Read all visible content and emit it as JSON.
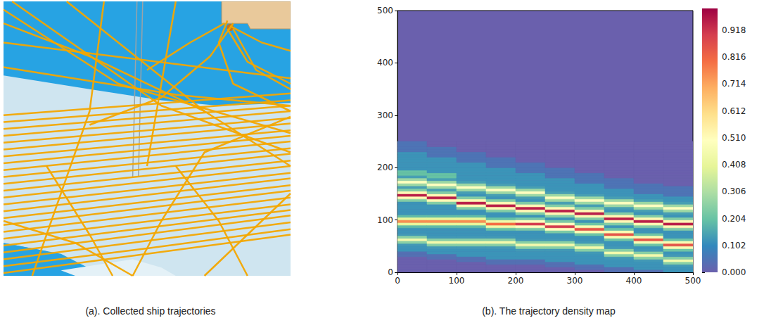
{
  "chart_data": [
    {
      "type": "lines",
      "title": "(a). Collected ship trajectories",
      "xlim": [
        0,
        100
      ],
      "ylim": [
        0,
        100
      ],
      "tick_labels": false,
      "color": "#f3a600",
      "trajectories": [
        [
          [
            0,
            1
          ],
          [
            100,
            15
          ]
        ],
        [
          [
            0,
            3.5
          ],
          [
            50,
            10
          ],
          [
            100,
            17
          ]
        ],
        [
          [
            0,
            6
          ],
          [
            100,
            19.5
          ]
        ],
        [
          [
            0,
            8.5
          ],
          [
            100,
            22
          ]
        ],
        [
          [
            0,
            11
          ],
          [
            50,
            17.5
          ],
          [
            100,
            24
          ]
        ],
        [
          [
            0,
            13.5
          ],
          [
            100,
            26
          ]
        ],
        [
          [
            0,
            16
          ],
          [
            100,
            28.5
          ]
        ],
        [
          [
            0,
            18.5
          ],
          [
            100,
            31
          ]
        ],
        [
          [
            0,
            21
          ],
          [
            100,
            33
          ]
        ],
        [
          [
            0,
            23.5
          ],
          [
            100,
            35.5
          ]
        ],
        [
          [
            0,
            26
          ],
          [
            100,
            37.5
          ]
        ],
        [
          [
            0,
            28.5
          ],
          [
            100,
            40
          ]
        ],
        [
          [
            0,
            31
          ],
          [
            100,
            42
          ]
        ],
        [
          [
            0,
            33.5
          ],
          [
            100,
            44.5
          ]
        ],
        [
          [
            0,
            36
          ],
          [
            100,
            46.5
          ]
        ],
        [
          [
            0,
            38.5
          ],
          [
            100,
            49
          ]
        ],
        [
          [
            0,
            41
          ],
          [
            100,
            51
          ]
        ],
        [
          [
            0,
            43.5
          ],
          [
            100,
            53
          ]
        ],
        [
          [
            0,
            46
          ],
          [
            100,
            55.5
          ]
        ],
        [
          [
            0,
            48.5
          ],
          [
            100,
            57.5
          ]
        ],
        [
          [
            0,
            51
          ],
          [
            100,
            60
          ]
        ],
        [
          [
            0,
            53.5
          ],
          [
            100,
            62
          ]
        ],
        [
          [
            0,
            56
          ],
          [
            100,
            64
          ]
        ],
        [
          [
            0,
            58.5
          ],
          [
            100,
            66.5
          ]
        ],
        [
          [
            0,
            97
          ],
          [
            40,
            70
          ],
          [
            100,
            52
          ]
        ],
        [
          [
            3,
            100
          ],
          [
            55,
            62
          ],
          [
            100,
            45
          ]
        ],
        [
          [
            0,
            85
          ],
          [
            100,
            72
          ]
        ],
        [
          [
            0,
            76
          ],
          [
            60,
            66
          ],
          [
            100,
            62
          ]
        ],
        [
          [
            22,
            100
          ],
          [
            70,
            60
          ],
          [
            100,
            40
          ]
        ],
        [
          [
            35,
            100
          ],
          [
            30,
            60
          ],
          [
            20,
            30
          ],
          [
            10,
            0
          ]
        ],
        [
          [
            60,
            100
          ],
          [
            55,
            70
          ],
          [
            50,
            40
          ]
        ],
        [
          [
            0,
            92
          ],
          [
            30,
            80
          ],
          [
            70,
            60
          ]
        ],
        [
          [
            78,
            90
          ],
          [
            85,
            78
          ],
          [
            100,
            70
          ]
        ],
        [
          [
            80,
            92
          ],
          [
            72,
            80
          ],
          [
            55,
            65
          ],
          [
            30,
            55
          ]
        ],
        [
          [
            79,
            91
          ],
          [
            90,
            85
          ],
          [
            100,
            82
          ]
        ],
        [
          [
            78,
            93
          ],
          [
            75,
            85
          ],
          [
            80,
            70
          ],
          [
            100,
            60
          ]
        ],
        [
          [
            80,
            90
          ],
          [
            88,
            75
          ],
          [
            100,
            68
          ]
        ],
        [
          [
            77,
            92
          ],
          [
            65,
            85
          ],
          [
            50,
            75
          ]
        ],
        [
          [
            0,
            20
          ],
          [
            25,
            12
          ],
          [
            45,
            0
          ]
        ],
        [
          [
            15,
            40
          ],
          [
            30,
            15
          ],
          [
            38,
            0
          ]
        ],
        [
          [
            60,
            40
          ],
          [
            75,
            20
          ],
          [
            85,
            0
          ]
        ],
        [
          [
            100,
            30
          ],
          [
            80,
            10
          ],
          [
            70,
            0
          ]
        ],
        [
          [
            45,
            0
          ],
          [
            55,
            20
          ],
          [
            70,
            45
          ],
          [
            100,
            58
          ]
        ]
      ]
    },
    {
      "type": "heatmap",
      "title": "(b). The trajectory density map",
      "xlim": [
        0,
        500
      ],
      "ylim": [
        0,
        500
      ],
      "xticks": [
        0,
        100,
        200,
        300,
        400,
        500
      ],
      "yticks": [
        0,
        100,
        200,
        300,
        400,
        500
      ],
      "x_edges": [
        0,
        50,
        100,
        150,
        200,
        250,
        300,
        350,
        400,
        450,
        500
      ],
      "y_edges": [
        0,
        5,
        10,
        15,
        20,
        25,
        30,
        35,
        40,
        45,
        50,
        55,
        60,
        65,
        70,
        75,
        80,
        85,
        90,
        95,
        100,
        105,
        110,
        115,
        120,
        125,
        130,
        135,
        140,
        145,
        150,
        155,
        160,
        165,
        170,
        175,
        180,
        185,
        190,
        195,
        200,
        205,
        210,
        215,
        220,
        225,
        230,
        235,
        240,
        245,
        250
      ],
      "z": [
        [
          0,
          0,
          0,
          0,
          0,
          0,
          0.04,
          0.04,
          0.12,
          0.12,
          0.13,
          0.25,
          0.45,
          0.25,
          0.13,
          0.12,
          0.12,
          0.19,
          0.41,
          0.75,
          0.41,
          0.19,
          0.12,
          0.12,
          0.12,
          0.12,
          0.12,
          0.24,
          0.52,
          0.95,
          0.52,
          0.24,
          0.14,
          0.28,
          0.5,
          0.28,
          0.14,
          0.2,
          0.2,
          0.12,
          0.12,
          0.12,
          0.12,
          0.12,
          0.12,
          0.12,
          0.05,
          0.05,
          0.05,
          0.05
        ],
        [
          0,
          0,
          0,
          0,
          0,
          0.04,
          0.04,
          0.12,
          0.12,
          0.13,
          0.25,
          0.45,
          0.25,
          0.13,
          0.12,
          0.12,
          0.12,
          0.19,
          0.41,
          0.75,
          0.41,
          0.19,
          0.12,
          0.12,
          0.12,
          0.12,
          0.24,
          0.52,
          0.95,
          0.52,
          0.24,
          0.14,
          0.28,
          0.5,
          0.28,
          0.14,
          0.2,
          0.2,
          0.12,
          0.12,
          0.12,
          0.12,
          0.12,
          0.12,
          0.05,
          0.05,
          0.05,
          0.05,
          0,
          0
        ],
        [
          0,
          0,
          0,
          0,
          0.04,
          0.04,
          0.12,
          0.12,
          0.12,
          0.13,
          0.25,
          0.45,
          0.25,
          0.13,
          0.12,
          0.12,
          0.12,
          0.19,
          0.41,
          0.75,
          0.41,
          0.19,
          0.12,
          0.12,
          0.24,
          0.52,
          0.95,
          0.52,
          0.24,
          0.12,
          0.14,
          0.28,
          0.5,
          0.28,
          0.14,
          0.12,
          0.12,
          0.12,
          0.12,
          0.12,
          0.12,
          0.12,
          0.05,
          0.05,
          0.05,
          0.05,
          0,
          0,
          0,
          0
        ],
        [
          0,
          0,
          0,
          0.04,
          0.04,
          0.12,
          0.12,
          0.12,
          0.12,
          0.13,
          0.25,
          0.45,
          0.25,
          0.13,
          0.12,
          0.12,
          0.2,
          0.44,
          0.8,
          0.44,
          0.2,
          0.12,
          0.12,
          0.24,
          0.52,
          0.95,
          0.52,
          0.24,
          0.12,
          0.14,
          0.28,
          0.5,
          0.28,
          0.14,
          0.12,
          0.12,
          0.12,
          0.12,
          0.12,
          0.12,
          0.05,
          0.05,
          0.05,
          0.05,
          0,
          0,
          0,
          0,
          0,
          0
        ],
        [
          0,
          0,
          0,
          0.04,
          0.04,
          0.12,
          0.12,
          0.12,
          0.13,
          0.25,
          0.45,
          0.25,
          0.13,
          0.12,
          0.12,
          0.12,
          0.23,
          0.5,
          0.9,
          0.5,
          0.23,
          0.12,
          0.24,
          0.52,
          0.95,
          0.52,
          0.24,
          0.12,
          0.14,
          0.28,
          0.5,
          0.28,
          0.14,
          0.12,
          0.12,
          0.12,
          0.12,
          0.12,
          0.05,
          0.05,
          0.05,
          0.05,
          0,
          0,
          0,
          0,
          0,
          0,
          0,
          0
        ],
        [
          0,
          0,
          0.04,
          0.04,
          0.12,
          0.12,
          0.12,
          0.12,
          0.13,
          0.25,
          0.45,
          0.25,
          0.13,
          0.12,
          0.12,
          0.23,
          0.5,
          0.9,
          0.5,
          0.23,
          0.12,
          0.24,
          0.52,
          0.95,
          0.52,
          0.24,
          0.14,
          0.28,
          0.5,
          0.28,
          0.14,
          0.12,
          0.12,
          0.12,
          0.12,
          0.12,
          0.05,
          0.05,
          0.05,
          0.05,
          0,
          0,
          0,
          0,
          0,
          0,
          0,
          0,
          0,
          0
        ],
        [
          0,
          0.04,
          0.04,
          0.12,
          0.12,
          0.12,
          0.12,
          0.13,
          0.25,
          0.45,
          0.25,
          0.13,
          0.12,
          0.12,
          0.21,
          0.47,
          0.85,
          0.47,
          0.21,
          0.12,
          0.24,
          0.52,
          0.95,
          0.52,
          0.24,
          0.14,
          0.28,
          0.5,
          0.28,
          0.14,
          0.12,
          0.12,
          0.12,
          0.12,
          0.05,
          0.05,
          0.05,
          0.05,
          0,
          0,
          0,
          0,
          0,
          0,
          0,
          0,
          0,
          0,
          0,
          0
        ],
        [
          0.04,
          0.04,
          0.12,
          0.12,
          0.12,
          0.13,
          0.25,
          0.45,
          0.25,
          0.13,
          0.12,
          0.12,
          0.21,
          0.47,
          0.85,
          0.47,
          0.21,
          0.12,
          0.24,
          0.52,
          0.95,
          0.52,
          0.24,
          0.12,
          0.14,
          0.28,
          0.5,
          0.28,
          0.14,
          0.12,
          0.12,
          0.12,
          0.05,
          0.05,
          0.05,
          0.05,
          0,
          0,
          0,
          0,
          0,
          0,
          0,
          0,
          0,
          0,
          0,
          0,
          0,
          0
        ],
        [
          0.04,
          0.12,
          0.12,
          0.12,
          0.13,
          0.25,
          0.45,
          0.25,
          0.13,
          0.12,
          0.21,
          0.47,
          0.85,
          0.47,
          0.21,
          0.12,
          0.12,
          0.24,
          0.52,
          0.95,
          0.52,
          0.24,
          0.12,
          0.14,
          0.28,
          0.5,
          0.28,
          0.14,
          0.12,
          0.12,
          0.05,
          0.05,
          0.05,
          0.05,
          0,
          0,
          0,
          0,
          0,
          0,
          0,
          0,
          0,
          0,
          0,
          0,
          0,
          0,
          0,
          0
        ],
        [
          0.12,
          0.12,
          0.13,
          0.25,
          0.45,
          0.25,
          0.13,
          0.12,
          0.21,
          0.47,
          0.85,
          0.47,
          0.21,
          0.12,
          0.12,
          0.12,
          0.24,
          0.52,
          0.95,
          0.52,
          0.24,
          0.12,
          0.14,
          0.28,
          0.5,
          0.28,
          0.14,
          0.12,
          0.12,
          0.05,
          0.05,
          0.05,
          0.05,
          0,
          0,
          0,
          0,
          0,
          0,
          0,
          0,
          0,
          0,
          0,
          0,
          0,
          0,
          0,
          0,
          0
        ]
      ],
      "colorbar": {
        "lim": [
          0,
          1
        ],
        "ticks": [
          {
            "value": 0,
            "label": "0.000"
          },
          0.102,
          0.204,
          0.306,
          0.408,
          {
            "value": 0.51,
            "label": "0.510"
          },
          0.612,
          0.714,
          0.816,
          0.918
        ]
      }
    }
  ]
}
